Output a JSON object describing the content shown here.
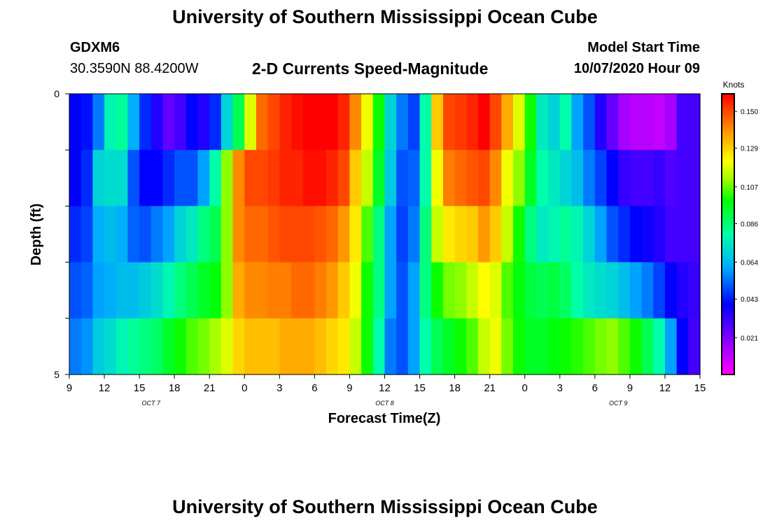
{
  "title": "University of Southern Mississippi Ocean Cube",
  "footer_title": "University of Southern Mississippi Ocean Cube",
  "station": {
    "id": "GDXM6",
    "coords": "30.3590N 88.4200W"
  },
  "model_start": {
    "label": "Model Start Time",
    "value": "10/07/2020 Hour 09"
  },
  "chart_data": {
    "type": "heatmap",
    "title": "2-D Currents Speed-Magnitude",
    "xlabel": "Forecast Time(Z)",
    "ylabel": "Depth (ft)",
    "x_ticks": [
      "9",
      "12",
      "15",
      "18",
      "21",
      "0",
      "3",
      "6",
      "9",
      "12",
      "15",
      "18",
      "21",
      "0",
      "3",
      "6",
      "9",
      "12",
      "15"
    ],
    "date_labels": [
      {
        "label": "OCT 7",
        "hour_index": 7
      },
      {
        "label": "OCT 8",
        "hour_index": 27
      },
      {
        "label": "OCT 9",
        "hour_index": 47
      }
    ],
    "y_ticks": [
      "0",
      "5"
    ],
    "ylim": [
      0,
      5
    ],
    "colorbar": {
      "unit": "Knots",
      "ticks": [
        "0.150",
        "0.129",
        "0.107",
        "0.086",
        "0.064",
        "0.043",
        "0.021"
      ],
      "range": [
        0.0,
        0.16
      ]
    },
    "grid_hours": 54,
    "depth_rows": 5,
    "values": [
      [
        0.04,
        0.042,
        0.055,
        0.078,
        0.082,
        0.062,
        0.045,
        0.035,
        0.025,
        0.03,
        0.04,
        0.035,
        0.045,
        0.07,
        0.09,
        0.118,
        0.145,
        0.15,
        0.155,
        0.158,
        0.16,
        0.162,
        0.162,
        0.155,
        0.14,
        0.12,
        0.1,
        0.07,
        0.055,
        0.048,
        0.08,
        0.13,
        0.15,
        0.152,
        0.155,
        0.16,
        0.15,
        0.135,
        0.118,
        0.1,
        0.075,
        0.07,
        0.08,
        0.06,
        0.05,
        0.035,
        0.025,
        0.015,
        0.012,
        0.012,
        0.01,
        0.015,
        0.03,
        0.03
      ],
      [
        0.04,
        0.045,
        0.07,
        0.072,
        0.072,
        0.05,
        0.04,
        0.04,
        0.045,
        0.05,
        0.05,
        0.06,
        0.08,
        0.11,
        0.14,
        0.15,
        0.15,
        0.152,
        0.155,
        0.155,
        0.158,
        0.158,
        0.155,
        0.15,
        0.13,
        0.115,
        0.095,
        0.068,
        0.05,
        0.052,
        0.08,
        0.12,
        0.142,
        0.145,
        0.148,
        0.15,
        0.14,
        0.12,
        0.11,
        0.095,
        0.08,
        0.075,
        0.07,
        0.065,
        0.055,
        0.048,
        0.04,
        0.032,
        0.03,
        0.03,
        0.032,
        0.028,
        0.03,
        0.03
      ],
      [
        0.045,
        0.048,
        0.062,
        0.065,
        0.062,
        0.052,
        0.05,
        0.055,
        0.06,
        0.07,
        0.075,
        0.085,
        0.09,
        0.11,
        0.14,
        0.145,
        0.145,
        0.148,
        0.15,
        0.15,
        0.15,
        0.148,
        0.145,
        0.138,
        0.125,
        0.105,
        0.085,
        0.06,
        0.048,
        0.055,
        0.085,
        0.115,
        0.125,
        0.128,
        0.13,
        0.138,
        0.13,
        0.115,
        0.1,
        0.085,
        0.075,
        0.078,
        0.082,
        0.078,
        0.07,
        0.06,
        0.05,
        0.045,
        0.04,
        0.038,
        0.035,
        0.03,
        0.03,
        0.03
      ],
      [
        0.05,
        0.052,
        0.06,
        0.062,
        0.065,
        0.065,
        0.068,
        0.072,
        0.078,
        0.085,
        0.09,
        0.095,
        0.098,
        0.11,
        0.135,
        0.14,
        0.14,
        0.142,
        0.142,
        0.145,
        0.145,
        0.142,
        0.138,
        0.13,
        0.12,
        0.1,
        0.085,
        0.06,
        0.05,
        0.06,
        0.085,
        0.1,
        0.108,
        0.11,
        0.115,
        0.122,
        0.118,
        0.105,
        0.098,
        0.092,
        0.09,
        0.092,
        0.088,
        0.08,
        0.075,
        0.072,
        0.07,
        0.065,
        0.06,
        0.055,
        0.048,
        0.04,
        0.035,
        0.032
      ],
      [
        0.055,
        0.058,
        0.068,
        0.072,
        0.078,
        0.082,
        0.085,
        0.088,
        0.095,
        0.1,
        0.105,
        0.108,
        0.112,
        0.118,
        0.128,
        0.132,
        0.132,
        0.132,
        0.135,
        0.135,
        0.135,
        0.132,
        0.128,
        0.125,
        0.115,
        0.1,
        0.08,
        0.055,
        0.05,
        0.06,
        0.08,
        0.09,
        0.095,
        0.1,
        0.105,
        0.115,
        0.12,
        0.108,
        0.1,
        0.095,
        0.095,
        0.098,
        0.1,
        0.102,
        0.105,
        0.108,
        0.11,
        0.105,
        0.1,
        0.09,
        0.08,
        0.06,
        0.04,
        0.03
      ]
    ]
  }
}
